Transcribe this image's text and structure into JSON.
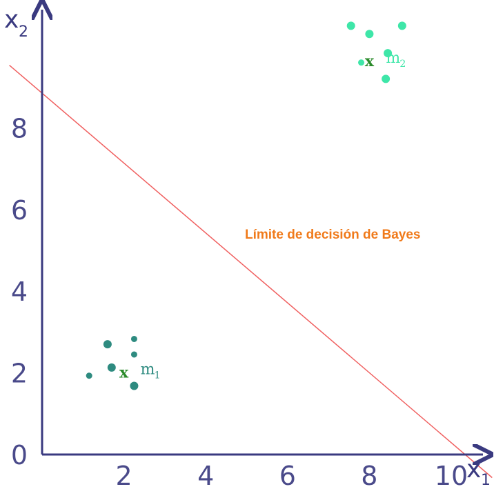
{
  "chart_data": {
    "type": "scatter",
    "title": "",
    "xlabel": "x",
    "xlabel_sub": "1",
    "ylabel": "x",
    "ylabel_sub": "2",
    "xlim": [
      0,
      10.5
    ],
    "ylim": [
      0,
      10.4
    ],
    "x_ticks": [
      2,
      4,
      6,
      8,
      10
    ],
    "y_ticks": [
      0,
      2,
      4,
      6,
      8
    ],
    "grid": false,
    "series": [
      {
        "color": "#2e8b80",
        "points": [
          {
            "x": 1.15,
            "y": 1.93,
            "size": "small"
          },
          {
            "x": 1.6,
            "y": 2.7,
            "size": "large"
          },
          {
            "x": 1.7,
            "y": 2.13,
            "size": "large"
          },
          {
            "x": 2.25,
            "y": 2.83,
            "size": "small"
          },
          {
            "x": 2.25,
            "y": 2.45,
            "size": "small"
          },
          {
            "x": 2.25,
            "y": 1.68,
            "size": "large"
          }
        ],
        "mean": {
          "x": 2.0,
          "y": 2.0,
          "marker": "x",
          "label": "m",
          "label_sub": "1",
          "label_color": "#2e8b80"
        }
      },
      {
        "color": "#3ee6a8",
        "points": [
          {
            "x": 7.55,
            "y": 10.5,
            "size": "large"
          },
          {
            "x": 8.0,
            "y": 10.3,
            "size": "large"
          },
          {
            "x": 8.8,
            "y": 10.5,
            "size": "large"
          },
          {
            "x": 8.45,
            "y": 9.83,
            "size": "large"
          },
          {
            "x": 7.8,
            "y": 9.6,
            "size": "small"
          },
          {
            "x": 8.4,
            "y": 9.2,
            "size": "large"
          }
        ],
        "mean": {
          "x": 8.0,
          "y": 9.63,
          "marker": "x",
          "label": "m",
          "label_sub": "2",
          "label_color": "#3ee6a8"
        }
      }
    ],
    "decision_boundary": {
      "label": "Límite de decisión de Bayes",
      "label_color": "#f07a1a",
      "color": "#f06060",
      "intercept": 8.85,
      "slope": -0.856
    }
  }
}
